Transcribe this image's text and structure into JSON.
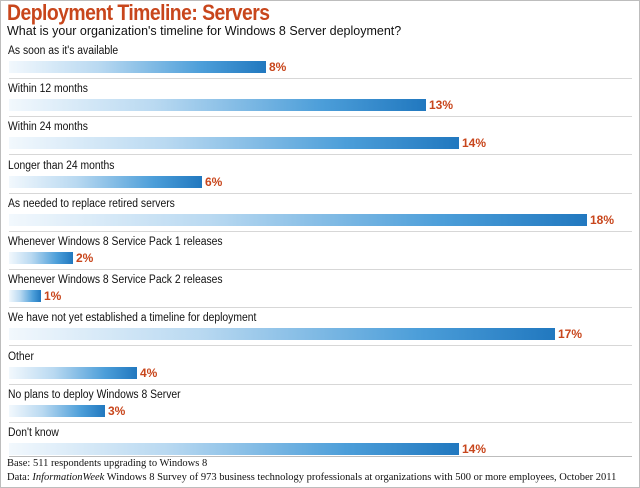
{
  "header": {
    "title": "Deployment Timeline: Servers",
    "subtitle": "What is your organization's timeline for Windows 8 Server deployment?"
  },
  "colors": {
    "accent": "#c8461c",
    "bar_dark": "#2178bf",
    "bar_light": "#f2f8fd"
  },
  "chart_data": {
    "type": "bar",
    "orientation": "horizontal",
    "categories": [
      "As soon as it's available",
      "Within 12 months",
      "Within 24 months",
      "Longer than 24 months",
      "As needed to replace retired servers",
      "Whenever Windows 8 Service Pack 1 releases",
      "Whenever Windows 8 Service Pack 2 releases",
      "We have not yet established a timeline for deployment",
      "Other",
      "No plans to deploy Windows 8 Server",
      "Don't know"
    ],
    "values": [
      8,
      13,
      14,
      6,
      18,
      2,
      1,
      17,
      4,
      3,
      14
    ],
    "value_labels": [
      "8%",
      "13%",
      "14%",
      "6%",
      "18%",
      "2%",
      "1%",
      "17%",
      "4%",
      "3%",
      "14%"
    ],
    "xlim": [
      0,
      18
    ],
    "grid": false
  },
  "footer": {
    "base": "Base: 511 respondents upgrading to Windows 8",
    "data_prefix": "Data: ",
    "data_source": "InformationWeek",
    "data_suffix": " Windows 8 Survey of 973 business technology professionals at organizations with 500 or more employees, October 2011"
  }
}
